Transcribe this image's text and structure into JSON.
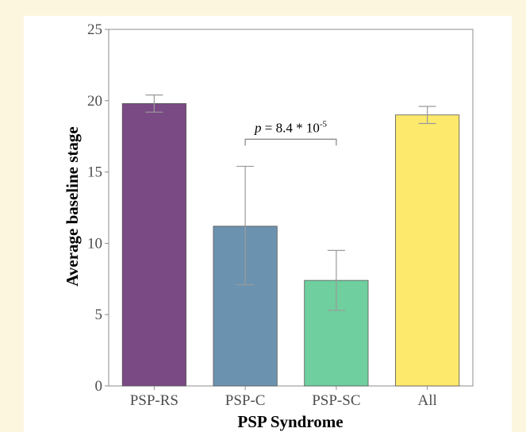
{
  "chart_data": {
    "type": "bar",
    "categories": [
      "PSP-RS",
      "PSP-C",
      "PSP-SC",
      "All"
    ],
    "values": [
      19.8,
      11.2,
      7.4,
      19.0
    ],
    "error_low": [
      19.2,
      7.1,
      5.3,
      18.4
    ],
    "error_high": [
      20.4,
      15.4,
      9.5,
      19.6
    ],
    "colors": [
      "#7a4a85",
      "#6b93b0",
      "#6fcf9e",
      "#fde96b"
    ],
    "xlabel": "PSP Syndrome",
    "ylabel": "Average baseline stage",
    "ylim": [
      0,
      25
    ],
    "yticks": [
      0,
      5,
      10,
      15,
      20,
      25
    ],
    "grid": false,
    "annotation": {
      "between": [
        "PSP-C",
        "PSP-SC"
      ],
      "y": 17.3,
      "p_symbol": "p",
      "text": " = 8.4 * 10",
      "exponent": "-5"
    }
  }
}
